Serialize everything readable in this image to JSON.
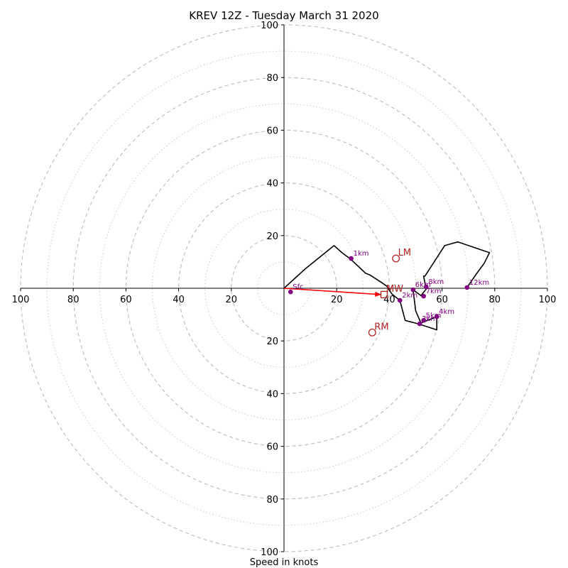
{
  "chart_data": {
    "type": "hodograph",
    "title": "KREV 12Z - Tuesday March 31 2020",
    "xlabel": "Speed in knots",
    "units": "knots",
    "xlim": [
      -100,
      100
    ],
    "ylim": [
      -100,
      100
    ],
    "ring_labels": [
      20,
      40,
      60,
      80,
      100
    ],
    "x_ticks": [
      {
        "value": -100,
        "label": "100"
      },
      {
        "value": -80,
        "label": "80"
      },
      {
        "value": -60,
        "label": "60"
      },
      {
        "value": -40,
        "label": "40"
      },
      {
        "value": -20,
        "label": "20"
      },
      {
        "value": 20,
        "label": "20"
      },
      {
        "value": 40,
        "label": "40"
      },
      {
        "value": 60,
        "label": "60"
      },
      {
        "value": 80,
        "label": "80"
      },
      {
        "value": 100,
        "label": "100"
      }
    ],
    "y_ticks": [
      {
        "value": 100,
        "label": "100"
      },
      {
        "value": 80,
        "label": "80"
      },
      {
        "value": 60,
        "label": "60"
      },
      {
        "value": 40,
        "label": "40"
      },
      {
        "value": 20,
        "label": "20"
      },
      {
        "value": -20,
        "label": "20"
      },
      {
        "value": -40,
        "label": "40"
      },
      {
        "value": -60,
        "label": "60"
      },
      {
        "value": -80,
        "label": "80"
      },
      {
        "value": -100,
        "label": "100"
      }
    ],
    "hodograph_line": [
      [
        0,
        0
      ],
      [
        8,
        7.3
      ],
      [
        19,
        16.2
      ],
      [
        22,
        13.5
      ],
      [
        25,
        11.3
      ],
      [
        31,
        5.7
      ],
      [
        32.5,
        5.1
      ],
      [
        37,
        2.2
      ],
      [
        39,
        0.8
      ],
      [
        41,
        -2.2
      ],
      [
        44,
        -4.6
      ],
      [
        46,
        -12.2
      ],
      [
        51,
        -13.5
      ],
      [
        56.5,
        -15.3
      ],
      [
        56.5,
        -15.3
      ],
      [
        58,
        -15.8
      ],
      [
        58,
        -10.8
      ],
      [
        56,
        -11.6
      ],
      [
        54,
        -12.4
      ],
      [
        52,
        -13.2
      ],
      [
        50,
        -8.6
      ],
      [
        49,
        -0.6
      ],
      [
        52,
        -2.8
      ],
      [
        54,
        -0.3
      ],
      [
        53,
        4.6
      ],
      [
        53.5,
        4.6
      ],
      [
        61,
        16.2
      ],
      [
        66,
        17.6
      ],
      [
        78,
        13.5
      ],
      [
        76,
        9.5
      ],
      [
        73,
        5.4
      ],
      [
        69.5,
        0.3
      ]
    ],
    "height_markers": [
      {
        "label": "Sfc",
        "u": 2.5,
        "v": -1.4
      },
      {
        "label": "1km",
        "u": 25.5,
        "v": 11.3
      },
      {
        "label": "2km",
        "u": 44,
        "v": -4.6
      },
      {
        "label": "3km",
        "u": 51.5,
        "v": -13.5
      },
      {
        "label": "4km",
        "u": 58,
        "v": -10.8
      },
      {
        "label": "5km",
        "u": 53,
        "v": -12.2
      },
      {
        "label": "6km",
        "u": 49,
        "v": -0.6
      },
      {
        "label": "7km",
        "u": 53,
        "v": -3.0
      },
      {
        "label": "8km",
        "u": 54,
        "v": 0.5
      },
      {
        "label": "12km",
        "u": 69.5,
        "v": 0.3
      }
    ],
    "storm_motion_markers": [
      {
        "label": "LM",
        "u": 42.5,
        "v": 11.3,
        "symbol": "circle"
      },
      {
        "label": "RM",
        "u": 33.5,
        "v": -16.8,
        "symbol": "circle"
      },
      {
        "label": "MW",
        "u": 38,
        "v": -2.4,
        "symbol": "square"
      }
    ],
    "shear_vector": {
      "from": [
        0,
        0
      ],
      "to": [
        37,
        -2.4
      ]
    },
    "colors": {
      "hodograph": "#000000",
      "height_marker": "#800080",
      "storm_motion": "#b22222",
      "shear_vector": "#ff0000",
      "rings": "#bbbbbb"
    }
  }
}
